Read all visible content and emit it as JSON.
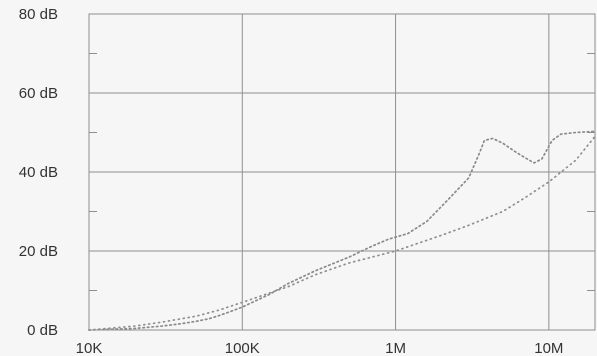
{
  "chart_data": {
    "type": "line",
    "title": "",
    "xlabel": "",
    "ylabel": "",
    "x_scale": "log",
    "xlim": [
      10000,
      20000000
    ],
    "ylim": [
      0,
      80
    ],
    "grid": true,
    "legend": "none",
    "x_ticks": [
      {
        "value": 10000,
        "label": "10K"
      },
      {
        "value": 100000,
        "label": "100K"
      },
      {
        "value": 1000000,
        "label": "1M"
      },
      {
        "value": 10000000,
        "label": "10M"
      }
    ],
    "y_ticks": [
      {
        "value": 0,
        "label": "0 dB"
      },
      {
        "value": 20,
        "label": "20 dB"
      },
      {
        "value": 40,
        "label": "40 dB"
      },
      {
        "value": 60,
        "label": "60 dB"
      },
      {
        "value": 80,
        "label": "80 dB"
      }
    ],
    "y_minor_ticks": [
      10,
      30,
      50,
      70
    ],
    "series": [
      {
        "color": "#8a8a8a",
        "dash": "1.5 3",
        "points": [
          {
            "x": 10000,
            "y": 0
          },
          {
            "x": 20000,
            "y": 0.4
          },
          {
            "x": 30000,
            "y": 1.0
          },
          {
            "x": 40000,
            "y": 1.6
          },
          {
            "x": 50000,
            "y": 2.2
          },
          {
            "x": 60000,
            "y": 2.8
          },
          {
            "x": 70000,
            "y": 3.6
          },
          {
            "x": 80000,
            "y": 4.4
          },
          {
            "x": 100000,
            "y": 5.8
          },
          {
            "x": 150000,
            "y": 9.0
          },
          {
            "x": 200000,
            "y": 11.8
          },
          {
            "x": 300000,
            "y": 15.0
          },
          {
            "x": 500000,
            "y": 18.5
          },
          {
            "x": 700000,
            "y": 21.2
          },
          {
            "x": 900000,
            "y": 23.0
          },
          {
            "x": 1200000,
            "y": 24.4
          },
          {
            "x": 1600000,
            "y": 27.5
          },
          {
            "x": 2200000,
            "y": 33.0
          },
          {
            "x": 3000000,
            "y": 38.5
          },
          {
            "x": 3500000,
            "y": 44.5
          },
          {
            "x": 3800000,
            "y": 48.0
          },
          {
            "x": 4300000,
            "y": 48.5
          },
          {
            "x": 5000000,
            "y": 47.3
          },
          {
            "x": 6000000,
            "y": 45.2
          },
          {
            "x": 7000000,
            "y": 43.6
          },
          {
            "x": 8000000,
            "y": 42.3
          },
          {
            "x": 9000000,
            "y": 43.3
          },
          {
            "x": 10500000,
            "y": 48.0
          },
          {
            "x": 12000000,
            "y": 49.6
          },
          {
            "x": 15000000,
            "y": 50.0
          },
          {
            "x": 20000000,
            "y": 50.3
          }
        ]
      },
      {
        "color": "#8f8f8f",
        "dash": "1 4",
        "points": [
          {
            "x": 10000,
            "y": 0
          },
          {
            "x": 20000,
            "y": 1.0
          },
          {
            "x": 30000,
            "y": 2.0
          },
          {
            "x": 50000,
            "y": 3.5
          },
          {
            "x": 70000,
            "y": 5.0
          },
          {
            "x": 100000,
            "y": 7.0
          },
          {
            "x": 200000,
            "y": 11.0
          },
          {
            "x": 300000,
            "y": 14.0
          },
          {
            "x": 500000,
            "y": 17.0
          },
          {
            "x": 1000000,
            "y": 20.0
          },
          {
            "x": 2000000,
            "y": 24.0
          },
          {
            "x": 3000000,
            "y": 26.5
          },
          {
            "x": 5000000,
            "y": 30.0
          },
          {
            "x": 7000000,
            "y": 33.5
          },
          {
            "x": 10000000,
            "y": 37.5
          },
          {
            "x": 15000000,
            "y": 43.0
          },
          {
            "x": 20000000,
            "y": 49.0
          }
        ]
      }
    ]
  }
}
